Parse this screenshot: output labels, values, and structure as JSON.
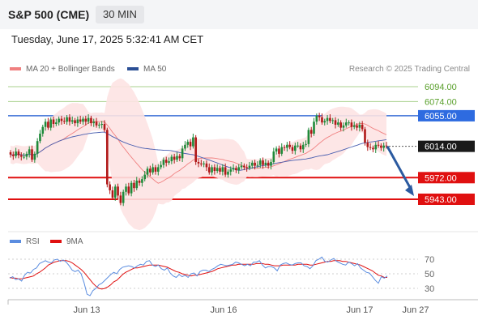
{
  "header": {
    "title": "S&P 500 (CME)",
    "timeframe": "30 MIN"
  },
  "datetime": "Tuesday, June 17, 2025 5:32:41 AM CET",
  "legend": {
    "ma20": "MA 20 + Bollinger Bands",
    "ma50": "MA 50",
    "credit": "Research © 2025 Trading Central"
  },
  "rsi_legend": {
    "rsi": "RSI",
    "ma9": "9MA"
  },
  "colors": {
    "up": "#1f8a3a",
    "down": "#b01818",
    "bollinger_fill": "#fde3e3",
    "ma20": "#f08080",
    "ma50": "#4a5fb0",
    "resistance": "#3b6fd6",
    "support": "#e01010",
    "target_green": "#a8d08d",
    "arrow": "#2b5aa0",
    "rsi": "#5b8de0",
    "rsi_ma": "#e01010",
    "current_price": "#1a1a1a"
  },
  "chart_data": [
    {
      "type": "candlestick",
      "title": "S&P 500 (CME)",
      "timeframe": "30 MIN",
      "x_ticks": [
        "Jun 13",
        "Jun 16",
        "Jun 17",
        "Jun 27"
      ],
      "ylim": [
        5925,
        6108
      ],
      "levels": [
        {
          "price": 6094.0,
          "label": "6094.00",
          "kind": "target"
        },
        {
          "price": 6074.0,
          "label": "6074.00",
          "kind": "target"
        },
        {
          "price": 6055.0,
          "label": "6055.00",
          "kind": "resistance"
        },
        {
          "price": 6014.0,
          "label": "6014.00",
          "kind": "current"
        },
        {
          "price": 5972.0,
          "label": "5972.00",
          "kind": "support"
        },
        {
          "price": 5943.0,
          "label": "5943.00",
          "kind": "support"
        }
      ],
      "close": [
        6003,
        6001,
        6007,
        6002,
        6000,
        6000,
        6004,
        6010,
        5996,
        6004,
        6021,
        6031,
        6040,
        6047,
        6039,
        6050,
        6044,
        6046,
        6051,
        6048,
        6047,
        6053,
        6047,
        6049,
        6045,
        6050,
        6047,
        6051,
        6047,
        6052,
        6045,
        6047,
        6042,
        6043,
        6044,
        6036,
        5963,
        5955,
        5945,
        5960,
        5948,
        5938,
        5953,
        5960,
        5951,
        5965,
        5958,
        5968,
        5965,
        5970,
        5976,
        5984,
        5979,
        5986,
        5980,
        5986,
        5989,
        5996,
        5992,
        5994,
        6000,
        5996,
        6001,
        5998,
        6011,
        6016,
        6020,
        6014,
        6026,
        5993,
        5991,
        5990,
        5991,
        5986,
        5979,
        5986,
        5981,
        5985,
        5980,
        5986,
        5976,
        5980,
        5983,
        5985,
        5982,
        5986,
        5988,
        5986,
        5985,
        5988,
        5992,
        5988,
        5989,
        5995,
        5989,
        5992,
        5988,
        5993,
        6007,
        6011,
        6004,
        6013,
        6012,
        6016,
        6013,
        6008,
        6015,
        6015,
        6010,
        6016,
        6017,
        6036,
        6031,
        6047,
        6055,
        6053,
        6046,
        6048,
        6052,
        6048,
        6049,
        6043,
        6046,
        6039,
        6042,
        6046,
        6046,
        6040,
        6042,
        6039,
        6043,
        6037,
        6019,
        6013,
        6012,
        6010,
        6016,
        6015,
        6012,
        6015,
        6014
      ],
      "rsi": {
        "ylim": [
          15,
          82
        ],
        "ticks": [
          70,
          50,
          30
        ],
        "rsi_values": [
          44,
          46,
          42,
          43,
          40,
          48,
          52,
          51,
          56,
          58,
          64,
          66,
          68,
          66,
          65,
          69,
          70,
          67,
          69,
          66,
          61,
          55,
          53,
          55,
          50,
          38,
          22,
          20,
          27,
          30,
          35,
          37,
          41,
          45,
          49,
          52,
          50,
          56,
          59,
          60,
          61,
          60,
          58,
          61,
          63,
          62,
          67,
          68,
          62,
          60,
          62,
          57,
          55,
          58,
          51,
          47,
          45,
          49,
          46,
          48,
          45,
          50,
          51,
          47,
          53,
          55,
          55,
          53,
          56,
          58,
          61,
          63,
          62,
          61,
          62,
          63,
          66,
          65,
          63,
          61,
          63,
          61,
          66,
          66,
          68,
          62,
          58,
          60,
          60,
          58,
          54,
          62,
          64,
          65,
          63,
          62,
          64,
          65,
          65,
          61,
          60,
          57,
          61,
          68,
          70,
          73,
          67,
          66,
          69,
          71,
          67,
          65,
          63,
          62,
          66,
          64,
          61,
          64,
          58,
          55,
          52,
          51,
          46,
          41,
          37,
          46,
          44,
          47
        ],
        "ma9_values": [
          45,
          44,
          44,
          43,
          43,
          44,
          45,
          46,
          47,
          50,
          52,
          55,
          58,
          62,
          64,
          66,
          67,
          68,
          68,
          68,
          67,
          65,
          62,
          59,
          56,
          52,
          47,
          42,
          37,
          33,
          30,
          29,
          30,
          32,
          35,
          39,
          41,
          45,
          49,
          52,
          54,
          56,
          58,
          58,
          59,
          60,
          61,
          62,
          62,
          62,
          62,
          61,
          60,
          59,
          57,
          55,
          53,
          52,
          50,
          49,
          48,
          47,
          48,
          48,
          49,
          50,
          51,
          52,
          53,
          55,
          57,
          58,
          59,
          60,
          61,
          62,
          62,
          63,
          63,
          63,
          63,
          63,
          63,
          64,
          64,
          64,
          63,
          63,
          62,
          61,
          61,
          61,
          62,
          62,
          62,
          62,
          62,
          63,
          63,
          63,
          63,
          62,
          62,
          63,
          64,
          65,
          66,
          67,
          67,
          68,
          68,
          68,
          67,
          67,
          66,
          65,
          64,
          63,
          62,
          60,
          58,
          56,
          54,
          51,
          48,
          47,
          45,
          45
        ]
      },
      "forecast": {
        "from_price": 6014,
        "to_price": 5943
      }
    }
  ]
}
